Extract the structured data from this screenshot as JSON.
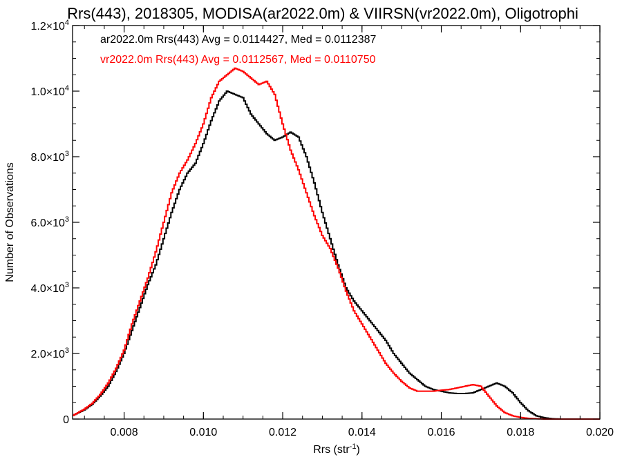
{
  "chart_data": {
    "type": "line",
    "title": "Rrs(443), 2018305, MODISA(ar2022.0m) & VIIRSN(vr2022.0m), Oligotrophi",
    "xlabel_main": "Rrs (str",
    "xlabel_sup": "-1",
    "xlabel_close": ")",
    "ylabel": "Number of Observations",
    "xlim": [
      0.0067,
      0.02
    ],
    "ylim": [
      0,
      12000
    ],
    "x_ticks": [
      {
        "value": 0.008,
        "label": "0.008"
      },
      {
        "value": 0.01,
        "label": "0.010"
      },
      {
        "value": 0.012,
        "label": "0.012"
      },
      {
        "value": 0.014,
        "label": "0.014"
      },
      {
        "value": 0.016,
        "label": "0.016"
      },
      {
        "value": 0.018,
        "label": "0.018"
      },
      {
        "value": 0.02,
        "label": "0.020"
      }
    ],
    "y_ticks": [
      {
        "value": 0,
        "label": "0",
        "exp": ""
      },
      {
        "value": 2000,
        "label": "2.0×10",
        "exp": "3"
      },
      {
        "value": 4000,
        "label": "4.0×10",
        "exp": "3"
      },
      {
        "value": 6000,
        "label": "6.0×10",
        "exp": "3"
      },
      {
        "value": 8000,
        "label": "8.0×10",
        "exp": "3"
      },
      {
        "value": 10000,
        "label": "1.0×10",
        "exp": "4"
      },
      {
        "value": 12000,
        "label": "1.2×10",
        "exp": "4"
      }
    ],
    "series": [
      {
        "name": "ar2022.0m Rrs(443) Avg = 0.0114427, Med = 0.0112387",
        "color": "#000000",
        "x": [
          0.0067,
          0.007,
          0.0072,
          0.0074,
          0.0076,
          0.0078,
          0.008,
          0.0082,
          0.0084,
          0.0086,
          0.0088,
          0.009,
          0.0092,
          0.0094,
          0.0096,
          0.0098,
          0.01,
          0.0102,
          0.0104,
          0.0106,
          0.0108,
          0.011,
          0.0112,
          0.0114,
          0.0116,
          0.0118,
          0.012,
          0.0122,
          0.0124,
          0.0126,
          0.0128,
          0.013,
          0.0132,
          0.0134,
          0.0136,
          0.0138,
          0.014,
          0.0142,
          0.0144,
          0.0146,
          0.0148,
          0.015,
          0.0152,
          0.0154,
          0.0156,
          0.0158,
          0.016,
          0.0162,
          0.0164,
          0.0166,
          0.0168,
          0.017,
          0.0172,
          0.0174,
          0.0176,
          0.0178,
          0.018,
          0.0182,
          0.0184,
          0.0186,
          0.0188,
          0.019,
          0.0195,
          0.02
        ],
        "y": [
          100,
          280,
          450,
          700,
          1000,
          1450,
          2000,
          2700,
          3400,
          4100,
          4700,
          5500,
          6300,
          7000,
          7500,
          7800,
          8400,
          9100,
          9700,
          10000,
          9900,
          9800,
          9300,
          9000,
          8700,
          8500,
          8600,
          8750,
          8600,
          8000,
          7200,
          6300,
          5500,
          4700,
          4000,
          3600,
          3300,
          3000,
          2700,
          2400,
          2000,
          1700,
          1400,
          1200,
          1000,
          900,
          850,
          800,
          780,
          780,
          800,
          900,
          1000,
          1100,
          1000,
          800,
          500,
          250,
          100,
          40,
          10,
          0,
          0,
          0
        ]
      },
      {
        "name": "vr2022.0m Rrs(443) Avg = 0.0112567, Med = 0.0110750",
        "color": "#ff0000",
        "x": [
          0.0067,
          0.007,
          0.0072,
          0.0074,
          0.0076,
          0.0078,
          0.008,
          0.0082,
          0.0084,
          0.0086,
          0.0088,
          0.009,
          0.0092,
          0.0094,
          0.0096,
          0.0098,
          0.01,
          0.0102,
          0.0104,
          0.0106,
          0.0108,
          0.011,
          0.0112,
          0.0114,
          0.0116,
          0.0118,
          0.012,
          0.0122,
          0.0124,
          0.0126,
          0.0128,
          0.013,
          0.0132,
          0.0134,
          0.0136,
          0.0138,
          0.014,
          0.0142,
          0.0144,
          0.0146,
          0.0148,
          0.015,
          0.0152,
          0.0154,
          0.0156,
          0.0158,
          0.016,
          0.0162,
          0.0164,
          0.0166,
          0.0168,
          0.017,
          0.0172,
          0.0174,
          0.0176,
          0.0178,
          0.018,
          0.0182,
          0.0184,
          0.0186,
          0.0188,
          0.019,
          0.0195,
          0.02
        ],
        "y": [
          100,
          300,
          480,
          750,
          1100,
          1550,
          2100,
          2900,
          3600,
          4300,
          5100,
          6000,
          6900,
          7500,
          7900,
          8400,
          9000,
          9800,
          10300,
          10500,
          10700,
          10600,
          10400,
          10200,
          10300,
          9900,
          9000,
          8200,
          7600,
          6900,
          6200,
          5600,
          5200,
          4600,
          3900,
          3300,
          2900,
          2500,
          2100,
          1700,
          1400,
          1150,
          950,
          850,
          850,
          850,
          880,
          900,
          950,
          1000,
          1050,
          1000,
          700,
          400,
          200,
          100,
          50,
          20,
          10,
          0,
          0,
          0,
          0,
          0
        ]
      }
    ]
  }
}
